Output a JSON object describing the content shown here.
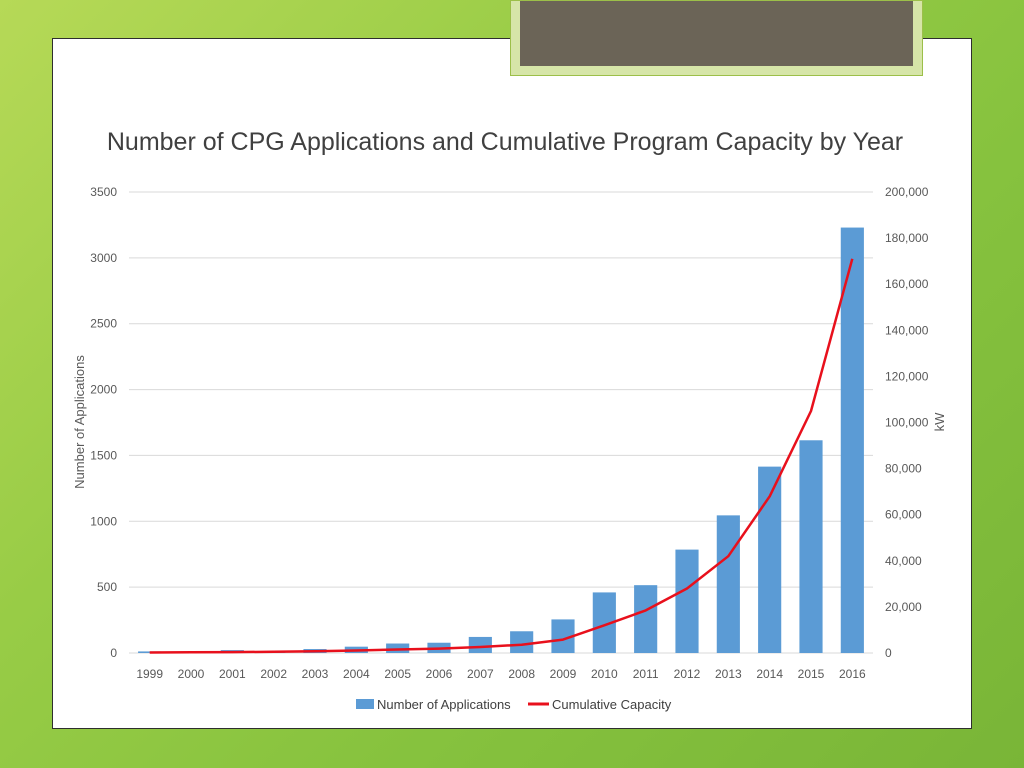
{
  "chart_data": {
    "type": "bar",
    "title": "Number of CPG Applications and Cumulative Program Capacity by Year",
    "categories": [
      "1999",
      "2000",
      "2001",
      "2002",
      "2003",
      "2004",
      "2005",
      "2006",
      "2007",
      "2008",
      "2009",
      "2010",
      "2011",
      "2012",
      "2013",
      "2014",
      "2015",
      "2016"
    ],
    "series": [
      {
        "name": "Number of Applications",
        "type": "bar",
        "axis": "left",
        "color": "#5b9bd5",
        "values": [
          12,
          12,
          22,
          15,
          30,
          48,
          72,
          78,
          122,
          165,
          255,
          460,
          515,
          785,
          1045,
          1415,
          1615,
          3230
        ]
      },
      {
        "name": "Cumulative Capacity",
        "type": "line",
        "axis": "right",
        "color": "#e8101c",
        "values": [
          200,
          300,
          400,
          500,
          800,
          1100,
          1500,
          1900,
          2600,
          3600,
          5800,
          12000,
          18500,
          28000,
          42000,
          68000,
          105000,
          171000
        ]
      }
    ],
    "y_left": {
      "label": "Number of Applications",
      "ticks": [
        "0",
        "500",
        "1000",
        "1500",
        "2000",
        "2500",
        "3000",
        "3500"
      ],
      "range": [
        0,
        3500
      ]
    },
    "y_right": {
      "label": "kW",
      "ticks": [
        "0",
        "20,000",
        "40,000",
        "60,000",
        "80,000",
        "100,000",
        "120,000",
        "140,000",
        "160,000",
        "180,000",
        "200,000"
      ],
      "range": [
        0,
        200000
      ]
    },
    "grid": true,
    "legend_position": "bottom"
  }
}
